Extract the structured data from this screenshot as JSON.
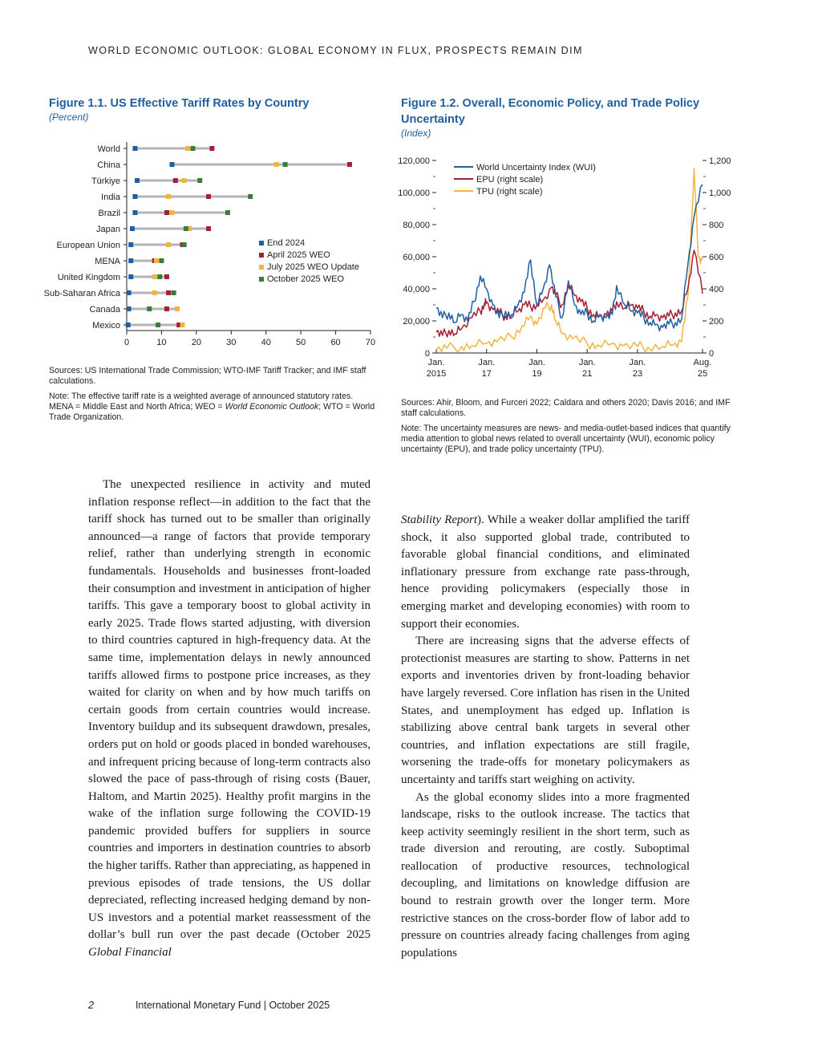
{
  "running_head": "WORLD ECONOMIC OUTLOOK: GLOBAL ECONOMY IN FLUX, PROSPECTS REMAIN DIM",
  "figure1": {
    "title": "Figure 1.1.  US Effective Tariff Rates by Country",
    "subtitle": "(Percent)",
    "sources": "Sources: US International Trade Commission; WTO-IMF Tariff Tracker; and IMF staff calculations.",
    "note_prefix": "Note: The effective tariff rate is a weighted average of announced statutory rates. MENA  = Middle East and North Africa; WEO = ",
    "note_italic": "World Economic Outlook",
    "note_suffix": "; WTO = World Trade Organization."
  },
  "figure2": {
    "title_line1": "Figure 1.2.  Overall, Economic Policy, and Trade Policy",
    "title_line2": "Uncertainty",
    "subtitle": "(Index)",
    "sources": "Sources: Ahir, Bloom, and Furceri 2022; Caldara and others 2020; Davis 2016; and IMF staff calculations.",
    "note": "Note: The uncertainty measures are news- and media-outlet-based indices that quantify media attention to global news related to overall uncertainty (WUI), economic policy uncertainty (EPU), and trade policy uncertainty (TPU)."
  },
  "chart_data": [
    {
      "type": "scatter",
      "title": "Figure 1.1.  US Effective Tariff Rates by Country",
      "subtitle": "(Percent)",
      "categories": [
        "World",
        "China",
        "Türkiye",
        "India",
        "Brazil",
        "Japan",
        "European Union",
        "MENA",
        "United Kingdom",
        "Sub-Saharan Africa",
        "Canada",
        "Mexico"
      ],
      "series": [
        {
          "name": "End 2024",
          "color": "#1f5fa0",
          "values": [
            2.4,
            13,
            3,
            2.4,
            2.4,
            1.6,
            1.2,
            1.2,
            1.2,
            0.6,
            0.6,
            0.4
          ]
        },
        {
          "name": "April 2025 WEO",
          "color": "#a32035",
          "values": [
            24.5,
            64,
            14,
            23.5,
            11.5,
            23.5,
            16,
            8,
            11.5,
            12,
            11.5,
            15
          ]
        },
        {
          "name": "July 2025 WEO Update",
          "color": "#f2b440",
          "values": [
            17.5,
            43,
            16.5,
            12,
            13,
            18,
            12,
            8.5,
            8,
            8,
            14.5,
            16
          ]
        },
        {
          "name": "October 2025 WEO",
          "color": "#3a7d3a",
          "values": [
            19,
            45.5,
            21,
            35.5,
            29,
            17,
            16.5,
            10,
            9.5,
            13.5,
            6.5,
            9
          ]
        }
      ],
      "xlim": [
        0,
        70
      ],
      "xticks": [
        0,
        10,
        20,
        30,
        40,
        50,
        60,
        70
      ],
      "grid": false,
      "legend": "right"
    },
    {
      "type": "line",
      "title": "Figure 1.2.  Overall, Economic Policy, and Trade Policy Uncertainty",
      "subtitle": "(Index)",
      "x_start": "2015-01",
      "x_end": "2025-08",
      "x_tick_labels": [
        [
          "Jan.",
          "2015"
        ],
        [
          "Jan.",
          "17"
        ],
        [
          "Jan.",
          "19"
        ],
        [
          "Jan.",
          "21"
        ],
        [
          "Jan.",
          "23"
        ],
        [
          "Aug.",
          "25"
        ]
      ],
      "x_tick_dates": [
        "2015-01",
        "2017-01",
        "2019-01",
        "2021-01",
        "2023-01",
        "2025-08"
      ],
      "ylim_left": [
        0,
        120000
      ],
      "yticks_left": [
        "0",
        "20,000",
        "40,000",
        "60,000",
        "80,000",
        "100,000",
        "120,000"
      ],
      "ylim_right": [
        0,
        1200
      ],
      "yticks_right": [
        "0",
        "200",
        "400",
        "600",
        "800",
        "1,000",
        "1,200"
      ],
      "legend": "top-left",
      "series": [
        {
          "name": "World Uncertainty Index (WUI)",
          "axis": "left",
          "color": "#1f5fa0",
          "points": [
            [
              "2015-01",
              28000
            ],
            [
              "2015-04",
              22000
            ],
            [
              "2015-07",
              25000
            ],
            [
              "2015-10",
              19000
            ],
            [
              "2016-01",
              24000
            ],
            [
              "2016-04",
              20000
            ],
            [
              "2016-07",
              32000
            ],
            [
              "2016-10",
              48000
            ],
            [
              "2017-01",
              40000
            ],
            [
              "2017-04",
              30000
            ],
            [
              "2017-07",
              22000
            ],
            [
              "2017-10",
              26000
            ],
            [
              "2018-01",
              22000
            ],
            [
              "2018-04",
              30000
            ],
            [
              "2018-07",
              38000
            ],
            [
              "2018-10",
              58000
            ],
            [
              "2019-01",
              30000
            ],
            [
              "2019-04",
              40000
            ],
            [
              "2019-07",
              55000
            ],
            [
              "2019-10",
              35000
            ],
            [
              "2020-01",
              22000
            ],
            [
              "2020-04",
              45000
            ],
            [
              "2020-07",
              30000
            ],
            [
              "2020-10",
              24000
            ],
            [
              "2021-01",
              25000
            ],
            [
              "2021-04",
              20000
            ],
            [
              "2021-07",
              24000
            ],
            [
              "2021-10",
              22000
            ],
            [
              "2022-01",
              24000
            ],
            [
              "2022-03",
              42000
            ],
            [
              "2022-07",
              30000
            ],
            [
              "2022-10",
              26000
            ],
            [
              "2023-01",
              25000
            ],
            [
              "2023-04",
              22000
            ],
            [
              "2023-07",
              19000
            ],
            [
              "2023-10",
              18000
            ],
            [
              "2024-01",
              16000
            ],
            [
              "2024-04",
              18000
            ],
            [
              "2024-07",
              19000
            ],
            [
              "2024-10",
              21000
            ],
            [
              "2025-01",
              55000
            ],
            [
              "2025-04",
              85000
            ],
            [
              "2025-08",
              105000
            ]
          ]
        },
        {
          "name": "EPU (right scale)",
          "axis": "right",
          "color": "#a32035",
          "points": [
            [
              "2015-01",
              130
            ],
            [
              "2015-04",
              110
            ],
            [
              "2015-07",
              140
            ],
            [
              "2015-10",
              120
            ],
            [
              "2016-01",
              150
            ],
            [
              "2016-06",
              220
            ],
            [
              "2016-10",
              260
            ],
            [
              "2016-12",
              310
            ],
            [
              "2017-01",
              320
            ],
            [
              "2017-04",
              270
            ],
            [
              "2017-07",
              250
            ],
            [
              "2017-10",
              230
            ],
            [
              "2018-01",
              240
            ],
            [
              "2018-04",
              260
            ],
            [
              "2018-07",
              300
            ],
            [
              "2018-10",
              290
            ],
            [
              "2019-01",
              300
            ],
            [
              "2019-04",
              330
            ],
            [
              "2019-08",
              410
            ],
            [
              "2019-10",
              360
            ],
            [
              "2020-01",
              300
            ],
            [
              "2020-04",
              420
            ],
            [
              "2020-07",
              360
            ],
            [
              "2020-10",
              320
            ],
            [
              "2021-01",
              280
            ],
            [
              "2021-04",
              240
            ],
            [
              "2021-07",
              230
            ],
            [
              "2021-10",
              240
            ],
            [
              "2022-01",
              260
            ],
            [
              "2022-03",
              320
            ],
            [
              "2022-07",
              280
            ],
            [
              "2022-10",
              300
            ],
            [
              "2023-01",
              280
            ],
            [
              "2023-04",
              260
            ],
            [
              "2023-07",
              230
            ],
            [
              "2023-10",
              240
            ],
            [
              "2024-01",
              220
            ],
            [
              "2024-04",
              230
            ],
            [
              "2024-07",
              250
            ],
            [
              "2024-10",
              260
            ],
            [
              "2025-01",
              400
            ],
            [
              "2025-04",
              640
            ],
            [
              "2025-08",
              370
            ]
          ]
        },
        {
          "name": "TPU (right scale)",
          "axis": "right",
          "color": "#f2b440",
          "points": [
            [
              "2015-01",
              20
            ],
            [
              "2015-06",
              30
            ],
            [
              "2016-01",
              40
            ],
            [
              "2016-06",
              45
            ],
            [
              "2017-01",
              60
            ],
            [
              "2017-06",
              70
            ],
            [
              "2018-01",
              100
            ],
            [
              "2018-06",
              170
            ],
            [
              "2018-10",
              230
            ],
            [
              "2019-01",
              180
            ],
            [
              "2019-05",
              280
            ],
            [
              "2019-08",
              300
            ],
            [
              "2019-10",
              200
            ],
            [
              "2020-01",
              120
            ],
            [
              "2020-06",
              90
            ],
            [
              "2021-01",
              60
            ],
            [
              "2021-06",
              50
            ],
            [
              "2022-01",
              60
            ],
            [
              "2022-06",
              45
            ],
            [
              "2023-01",
              40
            ],
            [
              "2023-06",
              35
            ],
            [
              "2024-01",
              40
            ],
            [
              "2024-06",
              50
            ],
            [
              "2024-10",
              70
            ],
            [
              "2025-01",
              350
            ],
            [
              "2025-04",
              1150
            ],
            [
              "2025-06",
              600
            ],
            [
              "2025-08",
              580
            ]
          ]
        }
      ]
    }
  ],
  "body": {
    "left_column": "The unexpected resilience in activity and muted inflation response reflect—in addition to the fact that the tariff shock has turned out to be smaller than originally announced—a range of factors that provide temporary relief, rather than underlying strength in economic fundamentals. Households and businesses front-loaded their consumption and investment in anticipation of higher tariffs. This gave a temporary boost to global activity in early 2025. Trade flows started adjusting, with diversion to third countries captured in high-frequency data. At the same time, implementation delays in newly announced tariffs allowed firms to postpone price increases, as they waited for clarity on when and by how much tariffs on certain goods from certain countries would increase. Inventory buildup and its subsequent drawdown, presales, orders put on hold or goods placed in bonded warehouses, and infrequent pricing because of long-term contracts also slowed the pace of pass-through of rising costs (Bauer, Haltom, and Martin 2025). Healthy profit margins in the wake of the inflation surge following the COVID-19 pandemic provided buffers for suppliers in source countries and importers in destination countries to absorb the higher tariffs. Rather than appreciating, as happened in previous episodes of trade tensions, the US dollar depreciated, reflecting increased hedging demand by non-US investors and a potential market reassessment of the dollar’s bull run over the past decade (October 2025 ",
    "left_column_italic": "Global Financial",
    "right_p1_italic": "Stability Report",
    "right_p1": "). While a weaker dollar amplified the tariff shock, it also supported global trade, contributed to favorable global financial conditions, and eliminated inflationary pressure from exchange rate pass-through, hence providing policymakers (especially those in emerging market and developing economies) with room to support their economies.",
    "right_p2": "There are increasing signs that the adverse effects of protectionist measures are starting to show. Patterns in net exports and inventories driven by front-loading behavior have largely reversed. Core inflation has risen in the United States, and unemployment has edged up. Inflation is stabilizing above central bank targets in several other countries, and inflation expectations are still fragile, worsening the trade-offs for monetary policymakers as uncertainty and tariffs start weighing on activity.",
    "right_p3": "As the global economy slides into a more fragmented landscape, risks to the outlook increase. The tactics that keep activity seemingly resilient in the short term, such as trade diversion and rerouting, are costly. Suboptimal reallocation of productive resources, technological decoupling, and limitations on knowledge diffusion are bound to restrain growth over the longer term. More restrictive stances on the cross-border flow of labor add to pressure on countries already facing challenges from aging populations"
  },
  "footer": {
    "page_number": "2",
    "publication": "International Monetary Fund | October 2025"
  }
}
